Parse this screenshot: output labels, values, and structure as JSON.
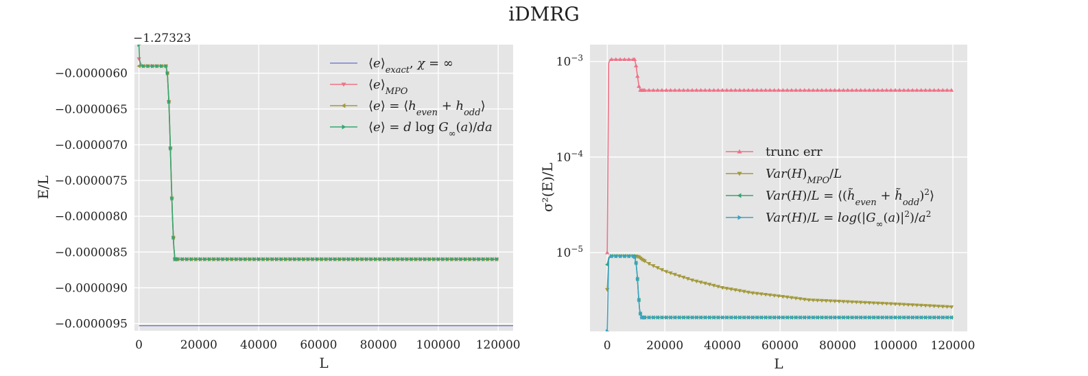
{
  "figure": {
    "title": "iDMRG"
  },
  "chart_data": [
    {
      "type": "line",
      "xlabel": "L",
      "ylabel": "E/L",
      "offset_text": "−1.27323",
      "xlim": [
        -1500,
        125000
      ],
      "ylim": [
        -9.6e-06,
        -5.6e-06
      ],
      "x_ticks": [
        0,
        20000,
        40000,
        60000,
        80000,
        100000,
        120000
      ],
      "x_tick_labels": [
        "0",
        "20000",
        "40000",
        "60000",
        "80000",
        "100000",
        "120000"
      ],
      "y_ticks": [
        -6e-06,
        -6.5e-06,
        -7e-06,
        -7.5e-06,
        -8e-06,
        -8.5e-06,
        -9e-06,
        -9.5e-06
      ],
      "y_tick_labels": [
        "−0.0000060",
        "−0.0000065",
        "−0.0000070",
        "−0.0000075",
        "−0.0000080",
        "−0.0000085",
        "−0.0000090",
        "−0.0000095"
      ],
      "grid": true,
      "legend": "top-right",
      "series": [
        {
          "name": "⟨e⟩exact, χ = ∞",
          "color": "#3e4fc4",
          "marker": "none",
          "x": [
            0,
            125000
          ],
          "y": [
            -9.53e-06,
            -9.53e-06
          ]
        },
        {
          "name": "⟨e⟩MPO",
          "color": "#f07187",
          "marker": "down",
          "x": [
            0,
            1000,
            3000,
            6000,
            9000,
            9500,
            10000,
            10400,
            10800,
            11200,
            11600,
            12000,
            20000,
            40000,
            60000,
            80000,
            100000,
            120000
          ],
          "y": [
            -5.8e-06,
            -5.9e-06,
            -5.9e-06,
            -5.9e-06,
            -5.9e-06,
            -6e-06,
            -6.4e-06,
            -6.9e-06,
            -7.5e-06,
            -8e-06,
            -8.4e-06,
            -8.6e-06,
            -8.6e-06,
            -8.6e-06,
            -8.6e-06,
            -8.6e-06,
            -8.6e-06,
            -8.6e-06
          ]
        },
        {
          "name": "⟨e⟩ = ⟨heven + hodd⟩",
          "color": "#a39a3c",
          "marker": "left",
          "x": [
            0,
            1000,
            3000,
            6000,
            9000,
            9500,
            10000,
            10400,
            10800,
            11200,
            11600,
            12000,
            20000,
            40000,
            60000,
            80000,
            100000,
            120000
          ],
          "y": [
            -5.9e-06,
            -5.9e-06,
            -5.9e-06,
            -5.9e-06,
            -5.9e-06,
            -6e-06,
            -6.4e-06,
            -6.9e-06,
            -7.5e-06,
            -8e-06,
            -8.4e-06,
            -8.6e-06,
            -8.6e-06,
            -8.6e-06,
            -8.6e-06,
            -8.6e-06,
            -8.6e-06,
            -8.6e-06
          ]
        },
        {
          "name": "⟨e⟩ = d log G∞(a)/da",
          "color": "#35a66f",
          "marker": "right",
          "x": [
            0,
            200,
            500,
            1000,
            3000,
            6000,
            9000,
            9500,
            10000,
            10400,
            10800,
            11200,
            11600,
            12000,
            20000,
            40000,
            60000,
            80000,
            100000,
            120000
          ],
          "y": [
            -5.6e-06,
            -5.8e-06,
            -5.9e-06,
            -5.9e-06,
            -5.9e-06,
            -5.9e-06,
            -5.9e-06,
            -6e-06,
            -6.4e-06,
            -6.9e-06,
            -7.5e-06,
            -8e-06,
            -8.4e-06,
            -8.6e-06,
            -8.6e-06,
            -8.6e-06,
            -8.6e-06,
            -8.6e-06,
            -8.6e-06,
            -8.6e-06
          ]
        }
      ]
    },
    {
      "type": "line",
      "xlabel": "L",
      "ylabel": "σ²(E)/L",
      "yscale": "log",
      "xlim": [
        -6000,
        125000
      ],
      "ylim": [
        1.5e-06,
        0.0015
      ],
      "x_ticks": [
        0,
        20000,
        40000,
        60000,
        80000,
        100000,
        120000
      ],
      "x_tick_labels": [
        "0",
        "20000",
        "40000",
        "60000",
        "80000",
        "100000",
        "120000"
      ],
      "y_ticks": [
        0.001,
        0.0001,
        1e-05
      ],
      "y_tick_labels": [
        "10−3",
        "10−4",
        "10−5"
      ],
      "grid": true,
      "legend": "center-right",
      "series": [
        {
          "name": "trunc err",
          "color": "#f07187",
          "marker": "up",
          "x": [
            0,
            500,
            1000,
            3000,
            6000,
            9000,
            9500,
            10000,
            10500,
            11000,
            11500,
            12000,
            20000,
            40000,
            60000,
            80000,
            100000,
            120000
          ],
          "y": [
            1e-05,
            0.00096,
            0.00105,
            0.00105,
            0.00105,
            0.00105,
            0.00105,
            0.0009,
            0.0007,
            0.00055,
            0.0005,
            0.0005,
            0.0005,
            0.0005,
            0.0005,
            0.0005,
            0.0005,
            0.0005
          ]
        },
        {
          "name": "Var(H)MPO/L",
          "color": "#a39a3c",
          "marker": "down",
          "x": [
            0,
            500,
            1000,
            3000,
            6000,
            9000,
            10000,
            11000,
            12000,
            15000,
            20000,
            25000,
            30000,
            40000,
            50000,
            60000,
            70000,
            80000,
            90000,
            100000,
            110000,
            120000
          ],
          "y": [
            4.1e-06,
            8.5e-06,
            9.2e-06,
            9.2e-06,
            9.2e-06,
            9.2e-06,
            9.2e-06,
            9e-06,
            8.5e-06,
            7.5e-06,
            6.4e-06,
            5.7e-06,
            5.1e-06,
            4.3e-06,
            3.8e-06,
            3.5e-06,
            3.2e-06,
            3.1e-06,
            3e-06,
            2.9e-06,
            2.8e-06,
            2.7e-06
          ]
        },
        {
          "name": "Var(H)/L = ⟨(h̃even + h̃odd)²⟩",
          "color": "#35a66f",
          "marker": "left",
          "x": [
            0,
            500,
            1000,
            3000,
            6000,
            9000,
            9500,
            10000,
            10400,
            10800,
            11200,
            11600,
            12000,
            20000,
            40000,
            60000,
            80000,
            100000,
            120000
          ],
          "y": [
            7.5e-06,
            8.8e-06,
            9.2e-06,
            9.2e-06,
            9.2e-06,
            9.2e-06,
            9e-06,
            7.8e-06,
            5.8e-06,
            3.8e-06,
            2.6e-06,
            2.2e-06,
            2.1e-06,
            2.1e-06,
            2.1e-06,
            2.1e-06,
            2.1e-06,
            2.1e-06,
            2.1e-06
          ]
        },
        {
          "name": "Var(H)/L = log(|G∞(a)|²)/a²",
          "color": "#3ba3bf",
          "marker": "right",
          "x": [
            0,
            500,
            1000,
            3000,
            6000,
            9000,
            9500,
            10000,
            10400,
            10800,
            11200,
            11600,
            12000,
            20000,
            40000,
            60000,
            80000,
            100000,
            120000
          ],
          "y": [
            1.5e-06,
            8.8e-06,
            9.2e-06,
            9.2e-06,
            9.2e-06,
            9.2e-06,
            9e-06,
            7.8e-06,
            5.8e-06,
            3.8e-06,
            2.6e-06,
            2.2e-06,
            2.1e-06,
            2.1e-06,
            2.1e-06,
            2.1e-06,
            2.1e-06,
            2.1e-06,
            2.1e-06
          ]
        }
      ]
    }
  ]
}
